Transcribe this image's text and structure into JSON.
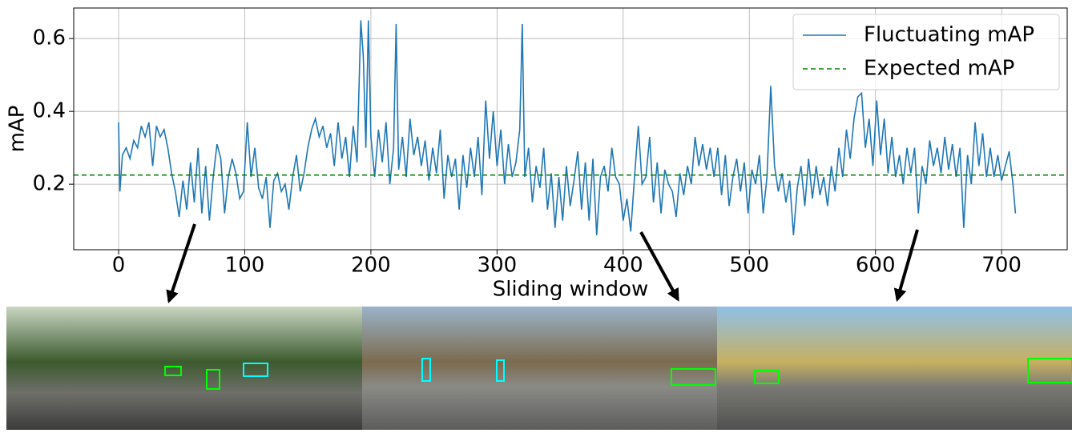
{
  "chart_data": {
    "type": "line",
    "xlabel": "Sliding window",
    "ylabel": "mAP",
    "x": [
      0,
      1,
      3,
      6,
      9,
      12,
      15,
      18,
      21,
      24,
      27,
      30,
      33,
      36,
      39,
      42,
      45,
      48,
      51,
      54,
      57,
      60,
      63,
      66,
      69,
      72,
      75,
      78,
      81,
      84,
      87,
      90,
      93,
      96,
      99,
      102,
      105,
      108,
      111,
      114,
      117,
      120,
      123,
      126,
      129,
      132,
      135,
      138,
      141,
      144,
      147,
      150,
      153,
      156,
      159,
      162,
      165,
      168,
      171,
      174,
      177,
      180,
      183,
      186,
      189,
      192,
      194,
      196,
      198,
      200,
      203,
      206,
      209,
      212,
      215,
      218,
      220,
      222,
      225,
      228,
      231,
      234,
      237,
      240,
      243,
      246,
      249,
      252,
      255,
      258,
      261,
      264,
      267,
      270,
      273,
      276,
      279,
      282,
      285,
      288,
      291,
      294,
      297,
      300,
      303,
      306,
      309,
      312,
      315,
      318,
      320,
      322,
      325,
      328,
      331,
      334,
      337,
      340,
      343,
      346,
      349,
      352,
      355,
      358,
      361,
      364,
      367,
      370,
      373,
      376,
      379,
      382,
      385,
      388,
      391,
      394,
      397,
      400,
      403,
      406,
      409,
      412,
      415,
      418,
      421,
      424,
      427,
      430,
      433,
      436,
      439,
      442,
      445,
      448,
      451,
      454,
      457,
      460,
      463,
      466,
      469,
      472,
      475,
      478,
      481,
      484,
      487,
      490,
      493,
      496,
      499,
      502,
      505,
      508,
      511,
      514,
      517,
      520,
      523,
      526,
      529,
      532,
      535,
      538,
      541,
      544,
      547,
      550,
      553,
      556,
      559,
      562,
      565,
      568,
      571,
      574,
      577,
      580,
      583,
      586,
      589,
      592,
      595,
      598,
      601,
      604,
      607,
      610,
      613,
      616,
      619,
      622,
      625,
      628,
      631,
      634,
      637,
      640,
      643,
      646,
      649,
      652,
      655,
      658,
      661,
      664,
      667,
      670,
      673,
      676,
      679,
      682,
      685,
      688,
      691,
      694,
      697,
      700,
      703,
      706,
      709,
      711
    ],
    "series": [
      {
        "name": "Fluctuating mAP",
        "color": "#1f77b4",
        "style": "solid",
        "values": [
          0.37,
          0.18,
          0.28,
          0.3,
          0.27,
          0.32,
          0.3,
          0.36,
          0.33,
          0.37,
          0.25,
          0.36,
          0.33,
          0.35,
          0.3,
          0.23,
          0.18,
          0.11,
          0.21,
          0.13,
          0.26,
          0.15,
          0.3,
          0.12,
          0.25,
          0.1,
          0.22,
          0.31,
          0.27,
          0.12,
          0.22,
          0.27,
          0.23,
          0.16,
          0.18,
          0.37,
          0.22,
          0.3,
          0.19,
          0.16,
          0.22,
          0.08,
          0.21,
          0.23,
          0.18,
          0.2,
          0.13,
          0.22,
          0.28,
          0.18,
          0.23,
          0.3,
          0.35,
          0.38,
          0.33,
          0.36,
          0.3,
          0.34,
          0.25,
          0.37,
          0.27,
          0.33,
          0.22,
          0.36,
          0.26,
          0.65,
          0.55,
          0.3,
          0.65,
          0.33,
          0.22,
          0.35,
          0.26,
          0.37,
          0.2,
          0.3,
          0.64,
          0.24,
          0.33,
          0.22,
          0.38,
          0.28,
          0.33,
          0.25,
          0.32,
          0.21,
          0.3,
          0.23,
          0.35,
          0.16,
          0.28,
          0.22,
          0.27,
          0.13,
          0.28,
          0.19,
          0.3,
          0.22,
          0.33,
          0.17,
          0.43,
          0.27,
          0.4,
          0.25,
          0.35,
          0.2,
          0.31,
          0.22,
          0.26,
          0.35,
          0.64,
          0.22,
          0.3,
          0.15,
          0.25,
          0.19,
          0.3,
          0.13,
          0.23,
          0.08,
          0.22,
          0.1,
          0.25,
          0.14,
          0.21,
          0.29,
          0.13,
          0.26,
          0.1,
          0.27,
          0.06,
          0.22,
          0.25,
          0.18,
          0.3,
          0.22,
          0.2,
          0.1,
          0.16,
          0.07,
          0.22,
          0.36,
          0.2,
          0.22,
          0.33,
          0.15,
          0.26,
          0.12,
          0.24,
          0.2,
          0.18,
          0.11,
          0.23,
          0.17,
          0.25,
          0.2,
          0.33,
          0.25,
          0.31,
          0.24,
          0.3,
          0.22,
          0.3,
          0.17,
          0.28,
          0.14,
          0.22,
          0.27,
          0.18,
          0.26,
          0.12,
          0.24,
          0.2,
          0.28,
          0.12,
          0.22,
          0.47,
          0.25,
          0.18,
          0.23,
          0.15,
          0.21,
          0.06,
          0.19,
          0.25,
          0.14,
          0.27,
          0.16,
          0.25,
          0.17,
          0.22,
          0.14,
          0.25,
          0.18,
          0.3,
          0.22,
          0.35,
          0.27,
          0.38,
          0.44,
          0.45,
          0.3,
          0.38,
          0.25,
          0.43,
          0.28,
          0.38,
          0.23,
          0.33,
          0.22,
          0.28,
          0.2,
          0.3,
          0.23,
          0.3,
          0.12,
          0.25,
          0.2,
          0.32,
          0.25,
          0.3,
          0.23,
          0.33,
          0.24,
          0.31,
          0.22,
          0.3,
          0.08,
          0.28,
          0.2,
          0.37,
          0.25,
          0.34,
          0.22,
          0.3,
          0.22,
          0.28,
          0.21,
          0.25,
          0.29,
          0.2,
          0.12
        ]
      },
      {
        "name": "Expected mAP",
        "color": "#008000",
        "style": "dashed",
        "value": 0.225
      }
    ],
    "xlim": [
      -35.6,
      752
    ],
    "xticks": [
      0,
      100,
      200,
      300,
      400,
      500,
      600,
      700
    ],
    "ylim": [
      0.02,
      0.684
    ],
    "yticks": [
      0.2,
      0.4,
      0.6
    ],
    "grid": true,
    "legend": "upper right"
  }
}
